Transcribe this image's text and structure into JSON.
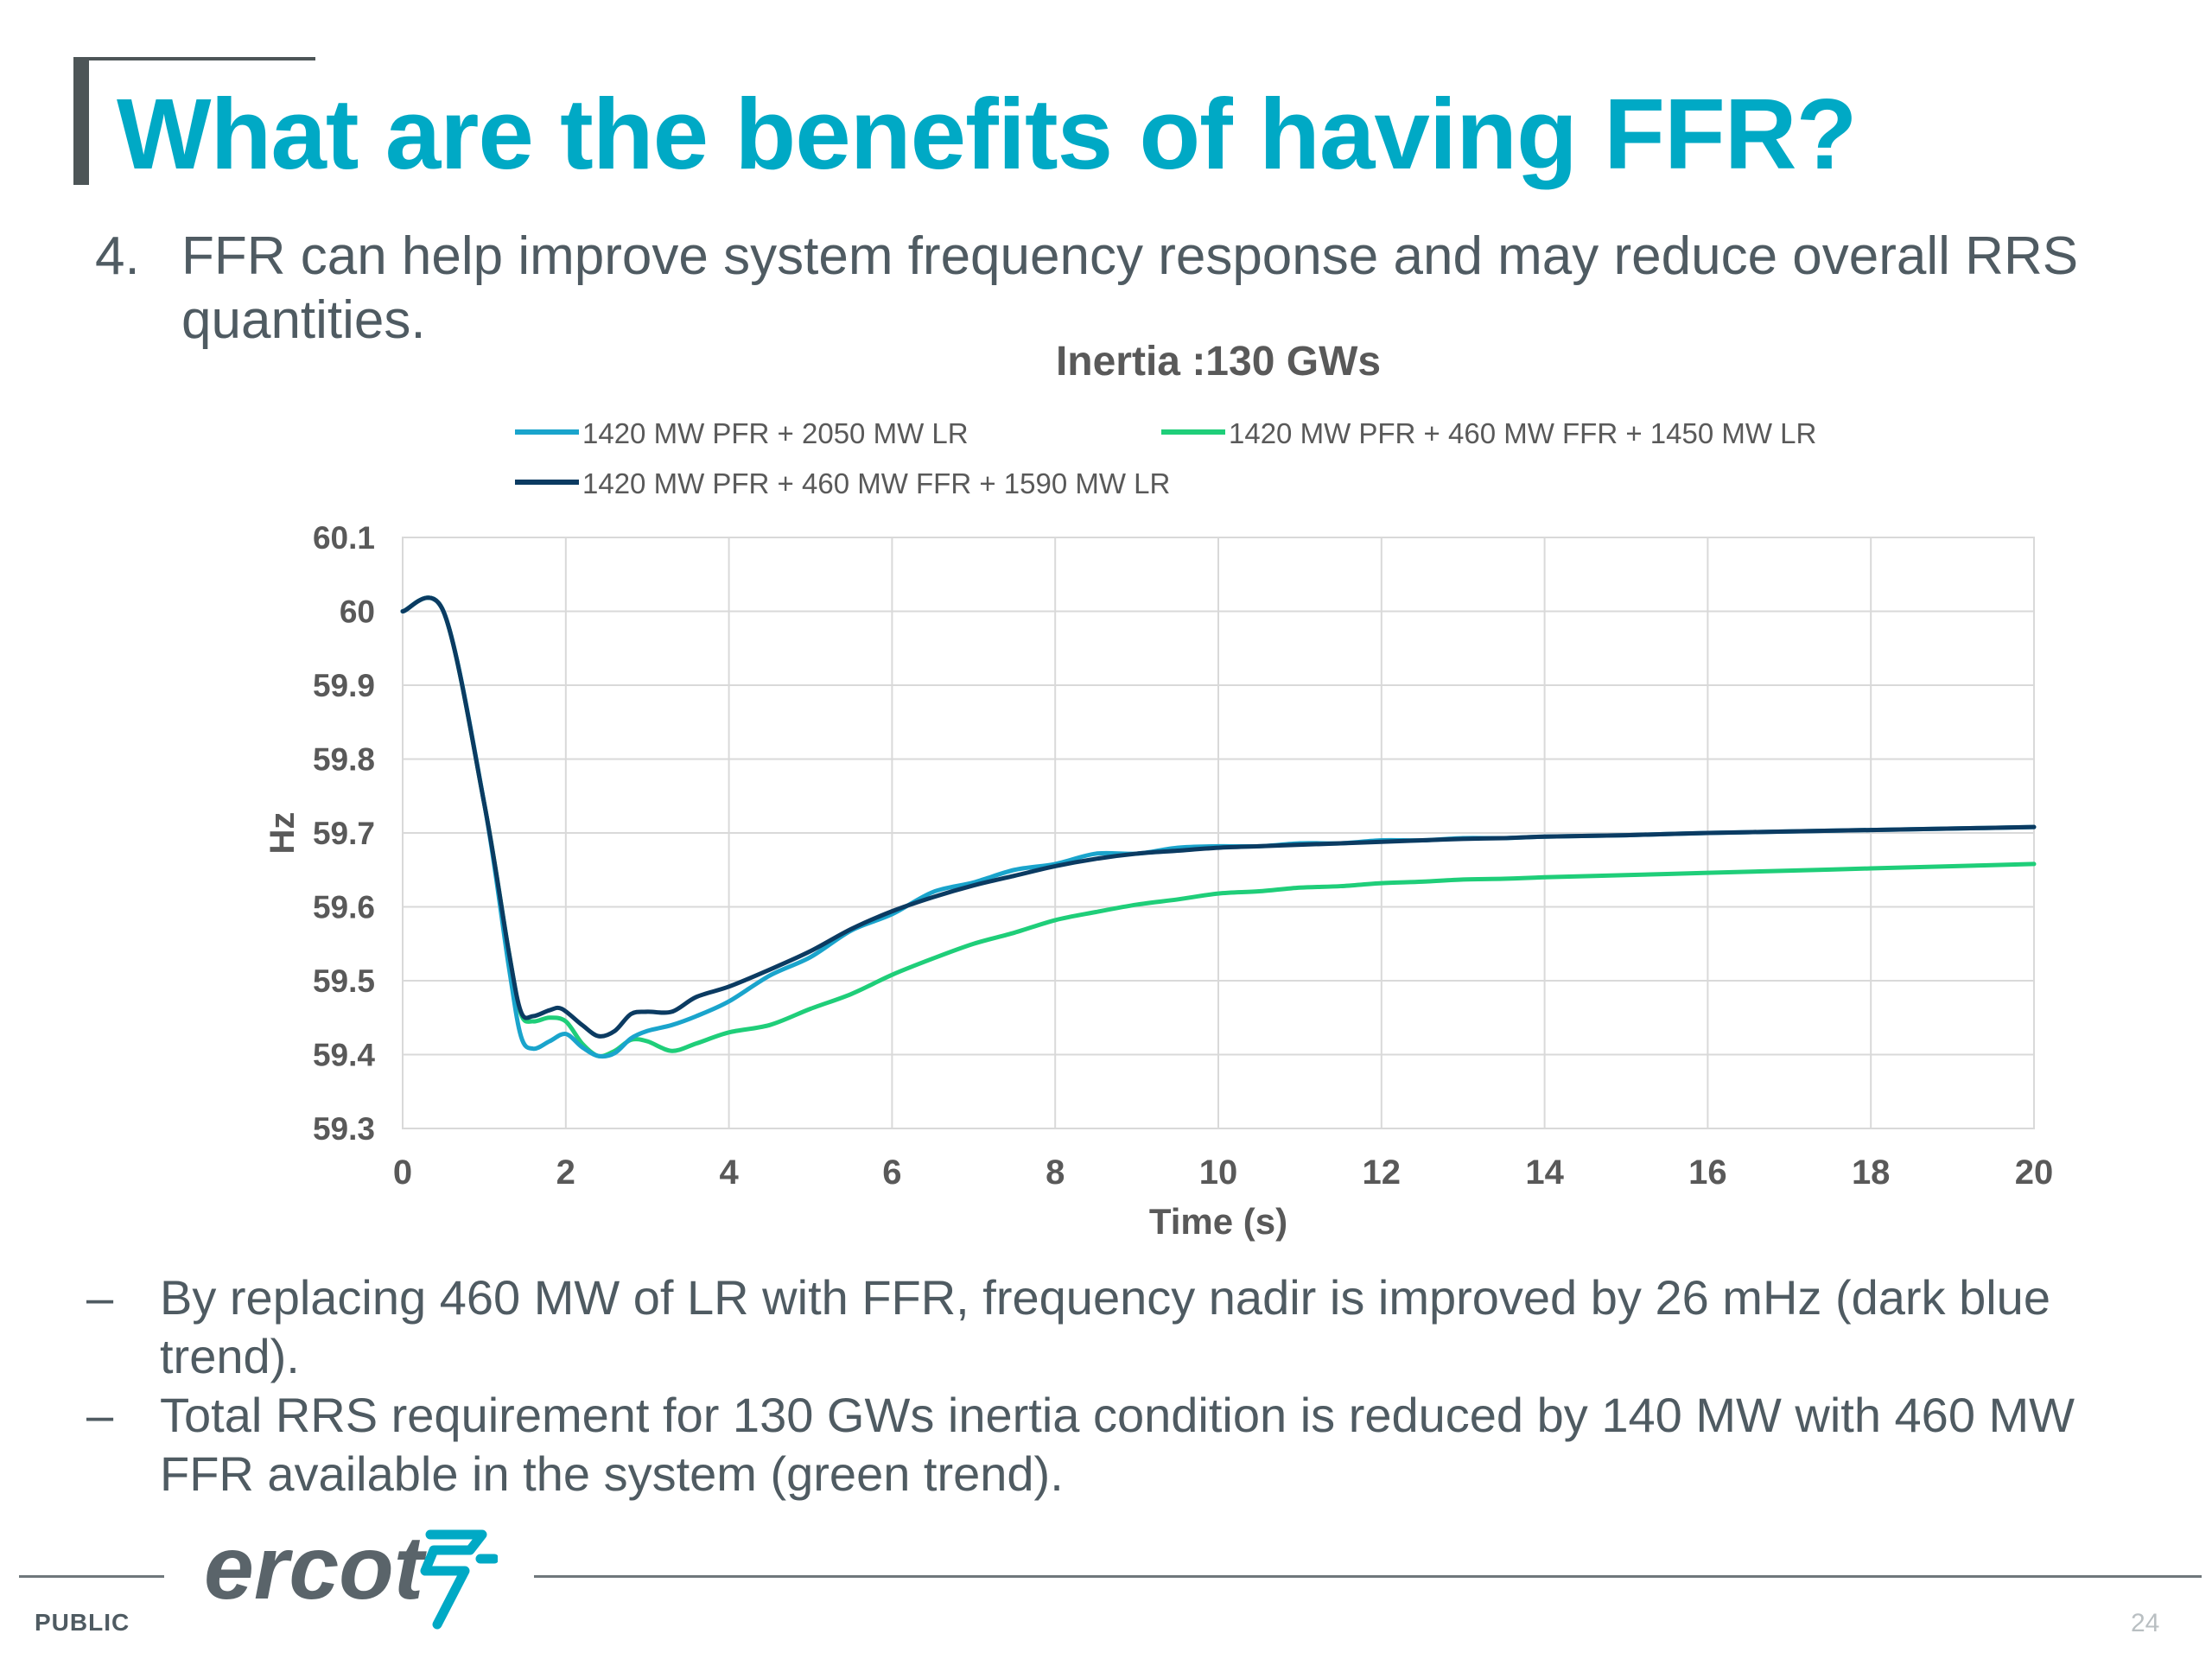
{
  "slide": {
    "title": "What are the benefits of having FFR?",
    "intro_number": "4.",
    "intro_text": "FFR can help improve system frequency response and may reduce overall RRS quantities.",
    "bullets": [
      {
        "dash": "–",
        "text": "By replacing 460 MW of LR with FFR, frequency nadir is improved by 26 mHz (dark blue trend)."
      },
      {
        "dash": "–",
        "text": "Total RRS requirement for 130 GWs inertia condition is reduced by 140 MW with 460 MW FFR available in the system (green trend)."
      }
    ],
    "footer": {
      "classification": "PUBLIC",
      "page": "24",
      "logo_text": "ercot"
    }
  },
  "colors": {
    "accent": "#00a9c5",
    "text": "#4f5b62",
    "series_light_blue": "#1aa4cc",
    "series_green": "#1fce79",
    "series_dark_blue": "#0b3b62",
    "logo_blue": "#00a9c5"
  },
  "chart_data": {
    "type": "line",
    "title": "Inertia :130 GWs",
    "xlabel": "Time (s)",
    "ylabel": "Hz",
    "xlim": [
      0,
      20
    ],
    "ylim": [
      59.3,
      60.1
    ],
    "xticks": [
      0,
      2,
      4,
      6,
      8,
      10,
      12,
      14,
      16,
      18,
      20
    ],
    "yticks": [
      59.3,
      59.4,
      59.5,
      59.6,
      59.7,
      59.8,
      59.9,
      60,
      60.1
    ],
    "ytick_labels": [
      "59.3",
      "59.4",
      "59.5",
      "59.6",
      "59.7",
      "59.8",
      "59.9",
      "60",
      "60.1"
    ],
    "grid": true,
    "legend_position": "top",
    "series": [
      {
        "name": "1420 MW PFR + 2050 MW LR",
        "color": "#1aa4cc",
        "points": [
          [
            0,
            60
          ],
          [
            0.5,
            60
          ],
          [
            1,
            59.74
          ],
          [
            1.3,
            59.52
          ],
          [
            1.45,
            59.425
          ],
          [
            1.6,
            59.408
          ],
          [
            1.8,
            59.418
          ],
          [
            2,
            59.428
          ],
          [
            2.2,
            59.41
          ],
          [
            2.4,
            59.398
          ],
          [
            2.6,
            59.402
          ],
          [
            2.8,
            59.422
          ],
          [
            3,
            59.432
          ],
          [
            3.3,
            59.44
          ],
          [
            3.6,
            59.452
          ],
          [
            4,
            59.472
          ],
          [
            4.5,
            59.507
          ],
          [
            5,
            59.532
          ],
          [
            5.5,
            59.568
          ],
          [
            6,
            59.59
          ],
          [
            6.5,
            59.62
          ],
          [
            7,
            59.633
          ],
          [
            7.5,
            59.65
          ],
          [
            8,
            59.658
          ],
          [
            8.5,
            59.672
          ],
          [
            9,
            59.672
          ],
          [
            9.5,
            59.68
          ],
          [
            10,
            59.682
          ],
          [
            10.5,
            59.682
          ],
          [
            11,
            59.686
          ],
          [
            11.5,
            59.686
          ],
          [
            12,
            59.69
          ],
          [
            12.5,
            59.69
          ],
          [
            13,
            59.693
          ],
          [
            13.5,
            59.693
          ],
          [
            14,
            59.695
          ],
          [
            15,
            59.697
          ],
          [
            16,
            59.7
          ],
          [
            17,
            59.702
          ],
          [
            18,
            59.704
          ],
          [
            19,
            59.706
          ],
          [
            20,
            59.708
          ]
        ]
      },
      {
        "name": "1420 MW PFR + 460 MW FFR + 1450 MW LR",
        "color": "#1fce79",
        "points": [
          [
            0,
            60
          ],
          [
            0.5,
            60
          ],
          [
            1,
            59.74
          ],
          [
            1.3,
            59.54
          ],
          [
            1.45,
            59.455
          ],
          [
            1.6,
            59.445
          ],
          [
            1.8,
            59.45
          ],
          [
            2,
            59.445
          ],
          [
            2.2,
            59.415
          ],
          [
            2.4,
            59.398
          ],
          [
            2.6,
            59.405
          ],
          [
            2.8,
            59.42
          ],
          [
            3,
            59.418
          ],
          [
            3.3,
            59.405
          ],
          [
            3.6,
            59.415
          ],
          [
            4,
            59.43
          ],
          [
            4.5,
            59.44
          ],
          [
            5,
            59.462
          ],
          [
            5.5,
            59.482
          ],
          [
            6,
            59.508
          ],
          [
            6.5,
            59.53
          ],
          [
            7,
            59.55
          ],
          [
            7.5,
            59.565
          ],
          [
            8,
            59.582
          ],
          [
            8.5,
            59.593
          ],
          [
            9,
            59.603
          ],
          [
            9.5,
            59.61
          ],
          [
            10,
            59.618
          ],
          [
            10.5,
            59.621
          ],
          [
            11,
            59.626
          ],
          [
            11.5,
            59.628
          ],
          [
            12,
            59.632
          ],
          [
            12.5,
            59.634
          ],
          [
            13,
            59.637
          ],
          [
            13.5,
            59.638
          ],
          [
            14,
            59.64
          ],
          [
            15,
            59.643
          ],
          [
            16,
            59.646
          ],
          [
            17,
            59.649
          ],
          [
            18,
            59.652
          ],
          [
            19,
            59.655
          ],
          [
            20,
            59.658
          ]
        ]
      },
      {
        "name": "1420 MW PFR + 460 MW FFR + 1590 MW LR",
        "color": "#0b3b62",
        "points": [
          [
            0,
            60
          ],
          [
            0.5,
            60
          ],
          [
            1,
            59.74
          ],
          [
            1.3,
            59.54
          ],
          [
            1.45,
            59.458
          ],
          [
            1.6,
            59.452
          ],
          [
            1.8,
            59.46
          ],
          [
            1.95,
            59.462
          ],
          [
            2.2,
            59.44
          ],
          [
            2.4,
            59.425
          ],
          [
            2.6,
            59.432
          ],
          [
            2.8,
            59.455
          ],
          [
            3,
            59.458
          ],
          [
            3.3,
            59.458
          ],
          [
            3.6,
            59.478
          ],
          [
            4,
            59.492
          ],
          [
            4.5,
            59.515
          ],
          [
            5,
            59.54
          ],
          [
            5.5,
            59.57
          ],
          [
            6,
            59.594
          ],
          [
            6.5,
            59.613
          ],
          [
            7,
            59.629
          ],
          [
            7.5,
            59.642
          ],
          [
            8,
            59.655
          ],
          [
            8.5,
            59.665
          ],
          [
            9,
            59.672
          ],
          [
            9.5,
            59.676
          ],
          [
            10,
            59.68
          ],
          [
            10.5,
            59.682
          ],
          [
            11,
            59.684
          ],
          [
            11.5,
            59.686
          ],
          [
            12,
            59.688
          ],
          [
            12.5,
            59.69
          ],
          [
            13,
            59.692
          ],
          [
            13.5,
            59.693
          ],
          [
            14,
            59.695
          ],
          [
            15,
            59.697
          ],
          [
            16,
            59.7
          ],
          [
            17,
            59.702
          ],
          [
            18,
            59.704
          ],
          [
            19,
            59.706
          ],
          [
            20,
            59.708
          ]
        ]
      }
    ]
  }
}
